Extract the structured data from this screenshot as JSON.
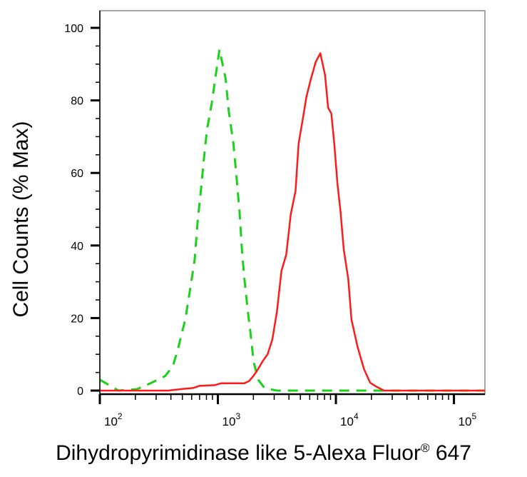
{
  "chart_data": {
    "type": "line",
    "title": "",
    "xlabel": "Dihydropyrimidinase like 5-Alexa Fluor",
    "xlabel_sup": "®",
    "xlabel_tail": " 647",
    "ylabel": "Cell Counts (% Max)",
    "xscale": "log",
    "xlim": [
      100,
      183000
    ],
    "ylim": [
      0,
      100
    ],
    "yticks": [
      0,
      20,
      40,
      60,
      80,
      100
    ],
    "xticks": [
      {
        "value": 100,
        "base": "10",
        "exp": "2"
      },
      {
        "value": 1000,
        "base": "10",
        "exp": "3"
      },
      {
        "value": 10000,
        "base": "10",
        "exp": "4"
      },
      {
        "value": 100000,
        "base": "10",
        "exp": "5"
      }
    ],
    "grid": false,
    "series": [
      {
        "color": "#19d219",
        "style": "dashed",
        "x": [
          100,
          144,
          207,
          264,
          357,
          415,
          455,
          529,
          580,
          635,
          675,
          717,
          762,
          809,
          886,
          970,
          1031,
          1164,
          1236,
          1355,
          1438,
          1528,
          1604,
          1674,
          1778,
          1889,
          2008,
          2197,
          2483,
          3162,
          183000
        ],
        "y": [
          3,
          0,
          0.4,
          1.9,
          4,
          6.7,
          11,
          19.5,
          27.7,
          36,
          47,
          55,
          64,
          72,
          79,
          88,
          94,
          86,
          77,
          68,
          59,
          49,
          38,
          31,
          23,
          16,
          8,
          3,
          0.7,
          0,
          0
        ]
      },
      {
        "color": "#ff1a1a",
        "style": "solid",
        "x": [
          100,
          379,
          483,
          616,
          695,
          941,
          1062,
          1674,
          1833,
          2008,
          2197,
          2409,
          2637,
          2889,
          3162,
          3460,
          3793,
          4150,
          4550,
          4830,
          5295,
          5623,
          6150,
          6745,
          7380,
          8090,
          8590,
          9140,
          9700,
          10300,
          10940,
          11640,
          12740,
          13550,
          15280,
          17260,
          19450,
          21980,
          25590,
          183000
        ],
        "y": [
          0,
          0,
          0.4,
          0.7,
          1.3,
          1.5,
          2,
          2,
          2.6,
          4.1,
          6,
          8.2,
          10,
          14,
          21.7,
          33,
          37.5,
          48.7,
          55,
          68,
          75.7,
          81,
          86,
          90.6,
          93,
          87,
          78,
          76.4,
          68,
          57,
          49.4,
          39,
          30.7,
          19.5,
          12,
          6,
          2.2,
          1.1,
          0,
          0
        ]
      }
    ]
  }
}
